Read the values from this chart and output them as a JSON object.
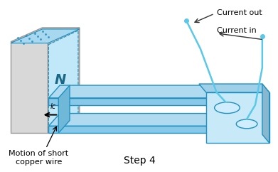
{
  "title": "Step 4",
  "label_current_out": "Current out",
  "label_current_in": "Current in",
  "label_motion": "Motion of short\ncopper wire",
  "label_N": "N",
  "bg_color": "#ffffff",
  "blue_mid": "#5bc8e8",
  "blue_dark": "#2090c0",
  "figsize": [
    3.91,
    2.42
  ],
  "dpi": 100
}
